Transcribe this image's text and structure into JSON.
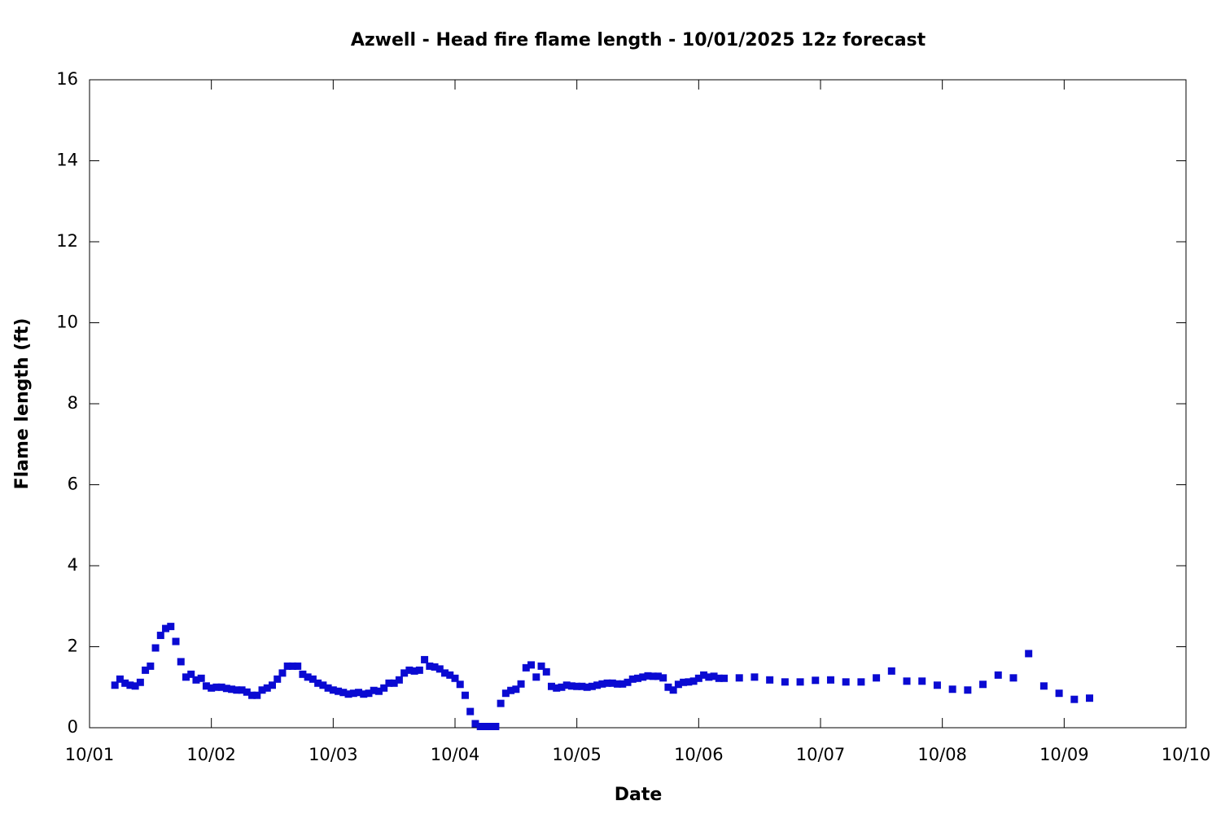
{
  "chart_data": {
    "type": "scatter",
    "title": "Azwell - Head fire flame length - 10/01/2025 12z forecast",
    "x_label": "Date",
    "y_label": "Flame length (ft)",
    "xlim": [
      0,
      216
    ],
    "xticks": [
      {
        "value": 0,
        "label": "10/01"
      },
      {
        "value": 24,
        "label": "10/02"
      },
      {
        "value": 48,
        "label": "10/03"
      },
      {
        "value": 72,
        "label": "10/04"
      },
      {
        "value": 96,
        "label": "10/05"
      },
      {
        "value": 120,
        "label": "10/06"
      },
      {
        "value": 144,
        "label": "10/07"
      },
      {
        "value": 168,
        "label": "10/08"
      },
      {
        "value": 192,
        "label": "10/09"
      },
      {
        "value": 216,
        "label": "10/10"
      }
    ],
    "ylim": [
      0,
      16
    ],
    "yticks": [
      0,
      2,
      4,
      6,
      8,
      10,
      12,
      14,
      16
    ],
    "grid": false,
    "series": [
      {
        "color": "#0a0ad2",
        "x": [
          5,
          6,
          7,
          8,
          9,
          10,
          11,
          12,
          13,
          14,
          15,
          16,
          17,
          18,
          19,
          20,
          21,
          22,
          23,
          24,
          25,
          26,
          27,
          28,
          29,
          30,
          31,
          32,
          33,
          34,
          35,
          36,
          37,
          38,
          39,
          40,
          41,
          42,
          43,
          44,
          45,
          46,
          47,
          48,
          49,
          50,
          51,
          52,
          53,
          54,
          55,
          56,
          57,
          58,
          59,
          60,
          61,
          62,
          63,
          64,
          65,
          66,
          67,
          68,
          69,
          70,
          71,
          72,
          73,
          74,
          75,
          76,
          77,
          78,
          79,
          80,
          81,
          82,
          83,
          84,
          85,
          86,
          87,
          88,
          89,
          90,
          91,
          92,
          93,
          94,
          95,
          96,
          97,
          98,
          99,
          100,
          101,
          102,
          103,
          104,
          105,
          106,
          107,
          108,
          109,
          110,
          111,
          112,
          113,
          114,
          115,
          116,
          117,
          118,
          119,
          120,
          121,
          122,
          123,
          124,
          125,
          128,
          131,
          134,
          137,
          140,
          143,
          146,
          149,
          152,
          155,
          158,
          161,
          164,
          167,
          170,
          173,
          176,
          179,
          182,
          185,
          188,
          191,
          194,
          197
        ],
        "values": [
          1.05,
          1.2,
          1.1,
          1.05,
          1.03,
          1.12,
          1.42,
          1.52,
          1.97,
          2.28,
          2.45,
          2.5,
          2.13,
          1.63,
          1.25,
          1.32,
          1.18,
          1.22,
          1.03,
          0.98,
          1.0,
          1.0,
          0.97,
          0.95,
          0.93,
          0.93,
          0.88,
          0.8,
          0.8,
          0.93,
          0.98,
          1.05,
          1.2,
          1.35,
          1.52,
          1.52,
          1.52,
          1.32,
          1.25,
          1.2,
          1.1,
          1.05,
          0.98,
          0.93,
          0.9,
          0.87,
          0.83,
          0.85,
          0.87,
          0.83,
          0.85,
          0.92,
          0.9,
          0.98,
          1.1,
          1.1,
          1.18,
          1.35,
          1.42,
          1.4,
          1.42,
          1.68,
          1.52,
          1.5,
          1.45,
          1.35,
          1.3,
          1.22,
          1.07,
          0.8,
          0.4,
          0.1,
          0.03,
          0.03,
          0.03,
          0.03,
          0.6,
          0.85,
          0.92,
          0.95,
          1.08,
          1.48,
          1.55,
          1.25,
          1.52,
          1.38,
          1.02,
          0.98,
          1.0,
          1.05,
          1.03,
          1.02,
          1.02,
          1.0,
          1.02,
          1.05,
          1.08,
          1.1,
          1.1,
          1.08,
          1.08,
          1.12,
          1.2,
          1.22,
          1.25,
          1.28,
          1.27,
          1.27,
          1.23,
          1.0,
          0.93,
          1.07,
          1.12,
          1.13,
          1.15,
          1.22,
          1.3,
          1.25,
          1.27,
          1.22,
          1.22,
          1.23,
          1.25,
          1.18,
          1.13,
          1.13,
          1.17,
          1.18,
          1.13,
          1.13,
          1.23,
          1.4,
          1.15,
          1.15,
          1.05,
          0.95,
          0.93,
          1.07,
          1.3,
          1.23,
          1.83,
          1.03,
          0.85,
          0.7,
          0.73
        ]
      }
    ]
  }
}
